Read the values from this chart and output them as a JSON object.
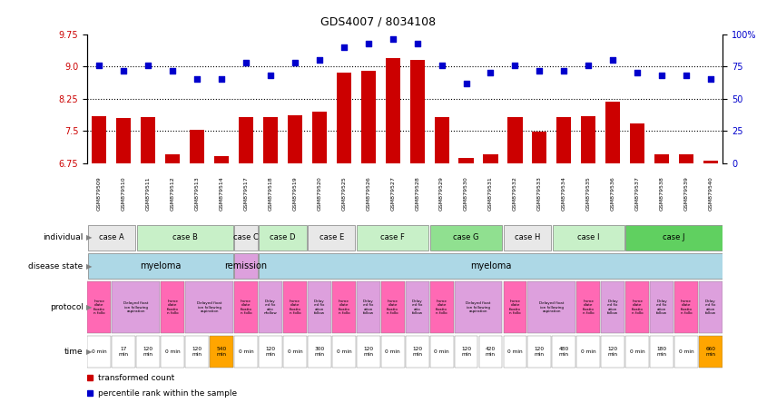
{
  "title": "GDS4007 / 8034108",
  "samples": [
    "GSM879509",
    "GSM879510",
    "GSM879511",
    "GSM879512",
    "GSM879513",
    "GSM879514",
    "GSM879517",
    "GSM879518",
    "GSM879519",
    "GSM879520",
    "GSM879525",
    "GSM879526",
    "GSM879527",
    "GSM879528",
    "GSM879529",
    "GSM879530",
    "GSM879531",
    "GSM879532",
    "GSM879533",
    "GSM879534",
    "GSM879535",
    "GSM879536",
    "GSM879537",
    "GSM879538",
    "GSM879539",
    "GSM879540"
  ],
  "bar_values": [
    7.85,
    7.8,
    7.83,
    6.95,
    7.52,
    6.92,
    7.82,
    7.83,
    7.87,
    7.95,
    8.85,
    8.9,
    9.2,
    9.15,
    7.82,
    6.88,
    6.95,
    7.82,
    7.48,
    7.83,
    7.85,
    8.18,
    7.68,
    6.95,
    6.95,
    6.82
  ],
  "dot_values": [
    76,
    72,
    76,
    72,
    65,
    65,
    78,
    68,
    78,
    80,
    90,
    93,
    96,
    93,
    76,
    62,
    70,
    76,
    72,
    72,
    76,
    80,
    70,
    68,
    68,
    65
  ],
  "ylim_left": [
    6.75,
    9.75
  ],
  "ylim_right": [
    0,
    100
  ],
  "yticks_left": [
    6.75,
    7.5,
    8.25,
    9.0,
    9.75
  ],
  "yticks_right": [
    0,
    25,
    50,
    75,
    100
  ],
  "hlines": [
    7.5,
    8.25,
    9.0
  ],
  "bar_color": "#cc0000",
  "dot_color": "#0000cc",
  "bar_bottom": 6.75,
  "xtick_bg_color": "#c8c8c8",
  "individual_groups": [
    {
      "name": "case A",
      "start": 0,
      "end": 2,
      "color": "#e8e8e8"
    },
    {
      "name": "case B",
      "start": 2,
      "end": 6,
      "color": "#c8f0c8"
    },
    {
      "name": "case C",
      "start": 6,
      "end": 7,
      "color": "#e8e8e8"
    },
    {
      "name": "case D",
      "start": 7,
      "end": 9,
      "color": "#c8f0c8"
    },
    {
      "name": "case E",
      "start": 9,
      "end": 11,
      "color": "#e8e8e8"
    },
    {
      "name": "case F",
      "start": 11,
      "end": 14,
      "color": "#c8f0c8"
    },
    {
      "name": "case G",
      "start": 14,
      "end": 17,
      "color": "#90e090"
    },
    {
      "name": "case H",
      "start": 17,
      "end": 19,
      "color": "#e8e8e8"
    },
    {
      "name": "case I",
      "start": 19,
      "end": 22,
      "color": "#c8f0c8"
    },
    {
      "name": "case J",
      "start": 22,
      "end": 26,
      "color": "#60d060"
    }
  ],
  "disease_groups": [
    {
      "name": "myeloma",
      "start": 0,
      "end": 6,
      "color": "#add8e6"
    },
    {
      "name": "remission",
      "start": 6,
      "end": 7,
      "color": "#dda0dd"
    },
    {
      "name": "myeloma",
      "start": 7,
      "end": 26,
      "color": "#add8e6"
    }
  ],
  "protocol_segments": [
    {
      "text": "Imme\ndiate\nfixatio\nn follo",
      "color": "#ff69b4",
      "start": 0,
      "end": 1
    },
    {
      "text": "Delayed fixat\nion following\naspiration",
      "color": "#dda0dd",
      "start": 1,
      "end": 3
    },
    {
      "text": "Imme\ndiate\nfixatio\nn follo",
      "color": "#ff69b4",
      "start": 3,
      "end": 4
    },
    {
      "text": "Delayed fixat\nion following\naspiration",
      "color": "#dda0dd",
      "start": 4,
      "end": 6
    },
    {
      "text": "Imme\ndiate\nfixatio\nn follo",
      "color": "#ff69b4",
      "start": 6,
      "end": 7
    },
    {
      "text": "Delay\ned fix\natio\nnfollow",
      "color": "#dda0dd",
      "start": 7,
      "end": 8
    },
    {
      "text": "Imme\ndiate\nfixatio\nn follo",
      "color": "#ff69b4",
      "start": 8,
      "end": 9
    },
    {
      "text": "Delay\ned fix\nation\nfollow",
      "color": "#dda0dd",
      "start": 9,
      "end": 10
    },
    {
      "text": "Imme\ndiate\nfixatio\nn follo",
      "color": "#ff69b4",
      "start": 10,
      "end": 11
    },
    {
      "text": "Delay\ned fix\nation\nfollow",
      "color": "#dda0dd",
      "start": 11,
      "end": 12
    },
    {
      "text": "Imme\ndiate\nfixatio\nn follo",
      "color": "#ff69b4",
      "start": 12,
      "end": 13
    },
    {
      "text": "Delay\ned fix\natio\nfollow",
      "color": "#dda0dd",
      "start": 13,
      "end": 14
    },
    {
      "text": "Imme\ndiate\nfixatio\nn follo",
      "color": "#ff69b4",
      "start": 14,
      "end": 15
    },
    {
      "text": "Delayed fixat\nion following\naspiration",
      "color": "#dda0dd",
      "start": 15,
      "end": 17
    },
    {
      "text": "Imme\ndiate\nfixatio\nn follo",
      "color": "#ff69b4",
      "start": 17,
      "end": 18
    },
    {
      "text": "Delayed fixat\nion following\naspiration",
      "color": "#dda0dd",
      "start": 18,
      "end": 20
    },
    {
      "text": "Imme\ndiate\nfixatio\nn follo",
      "color": "#ff69b4",
      "start": 20,
      "end": 21
    },
    {
      "text": "Delay\ned fix\nation\nfollow",
      "color": "#dda0dd",
      "start": 21,
      "end": 22
    },
    {
      "text": "Imme\ndiate\nfixatio\nn follo",
      "color": "#ff69b4",
      "start": 22,
      "end": 23
    },
    {
      "text": "Delay\ned fix\nation\nfollow",
      "color": "#dda0dd",
      "start": 23,
      "end": 24
    },
    {
      "text": "Imme\ndiate\nfixatio\nn follo",
      "color": "#ff69b4",
      "start": 24,
      "end": 25
    },
    {
      "text": "Delay\ned fix\nation\nfollow",
      "color": "#dda0dd",
      "start": 25,
      "end": 26
    }
  ],
  "time_cells": [
    {
      "text": "0 min",
      "color": "#ffffff"
    },
    {
      "text": "17\nmin",
      "color": "#ffffff"
    },
    {
      "text": "120\nmin",
      "color": "#ffffff"
    },
    {
      "text": "0 min",
      "color": "#ffffff"
    },
    {
      "text": "120\nmin",
      "color": "#ffffff"
    },
    {
      "text": "540\nmin",
      "color": "#ffa500"
    },
    {
      "text": "0 min",
      "color": "#ffffff"
    },
    {
      "text": "120\nmin",
      "color": "#ffffff"
    },
    {
      "text": "0 min",
      "color": "#ffffff"
    },
    {
      "text": "300\nmin",
      "color": "#ffffff"
    },
    {
      "text": "0 min",
      "color": "#ffffff"
    },
    {
      "text": "120\nmin",
      "color": "#ffffff"
    },
    {
      "text": "0 min",
      "color": "#ffffff"
    },
    {
      "text": "120\nmin",
      "color": "#ffffff"
    },
    {
      "text": "0 min",
      "color": "#ffffff"
    },
    {
      "text": "120\nmin",
      "color": "#ffffff"
    },
    {
      "text": "420\nmin",
      "color": "#ffffff"
    },
    {
      "text": "0 min",
      "color": "#ffffff"
    },
    {
      "text": "120\nmin",
      "color": "#ffffff"
    },
    {
      "text": "480\nmin",
      "color": "#ffffff"
    },
    {
      "text": "0 min",
      "color": "#ffffff"
    },
    {
      "text": "120\nmin",
      "color": "#ffffff"
    },
    {
      "text": "0 min",
      "color": "#ffffff"
    },
    {
      "text": "180\nmin",
      "color": "#ffffff"
    },
    {
      "text": "0 min",
      "color": "#ffffff"
    },
    {
      "text": "660\nmin",
      "color": "#ffa500"
    }
  ],
  "row_labels": [
    "individual",
    "disease state",
    "protocol",
    "time"
  ],
  "legend_items": [
    {
      "label": "transformed count",
      "color": "#cc0000"
    },
    {
      "label": "percentile rank within the sample",
      "color": "#0000cc"
    }
  ]
}
